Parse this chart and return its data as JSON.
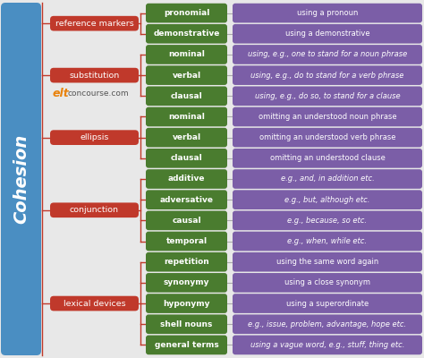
{
  "title": "Cohesion",
  "title_bg": "#4a8ec2",
  "title_text_color": "white",
  "watermark_elt": "elt",
  "watermark_rest": "concourse.com",
  "watermark_elt_color": "#e8820c",
  "watermark_rest_color": "#555555",
  "categories": [
    {
      "label": "reference markers",
      "rows": [
        0,
        1
      ]
    },
    {
      "label": "substitution",
      "rows": [
        2,
        3,
        4
      ]
    },
    {
      "label": "ellipsis",
      "rows": [
        5,
        6,
        7
      ]
    },
    {
      "label": "conjunction",
      "rows": [
        8,
        9,
        10,
        11
      ]
    },
    {
      "label": "lexical devices",
      "rows": [
        12,
        13,
        14,
        15,
        16
      ]
    }
  ],
  "rows": [
    {
      "green": "pronomial",
      "purple": "using a pronoun"
    },
    {
      "green": "demonstrative",
      "purple": "using a demonstrative"
    },
    {
      "green": "nominal",
      "purple": "using, e.g., one to stand for a noun phrase"
    },
    {
      "green": "verbal",
      "purple": "using, e.g., do to stand for a verb phrase"
    },
    {
      "green": "clausal",
      "purple": "using, e.g., do so, to stand for a clause"
    },
    {
      "green": "nominal",
      "purple": "omitting an understood noun phrase"
    },
    {
      "green": "verbal",
      "purple": "omitting an understood verb phrase"
    },
    {
      "green": "clausal",
      "purple": "omitting an understood clause"
    },
    {
      "green": "additive",
      "purple": "e.g., and, in addition etc."
    },
    {
      "green": "adversative",
      "purple": "e.g., but, although etc."
    },
    {
      "green": "causal",
      "purple": "e.g., because, so etc."
    },
    {
      "green": "temporal",
      "purple": "e.g., when, while etc."
    },
    {
      "green": "repetition",
      "purple": "using the same word again"
    },
    {
      "green": "synonymy",
      "purple": "using a close synonym"
    },
    {
      "green": "hyponymy",
      "purple": "using a superordinate"
    },
    {
      "green": "shell nouns",
      "purple": "e.g., issue, problem, advantage, hope etc."
    },
    {
      "green": "general terms",
      "purple": "using a vague word, e.g., stuff, thing etc."
    }
  ],
  "red_color": "#c0392b",
  "green_color": "#4a7c2f",
  "purple_color": "#7b5ea7",
  "line_color": "#c0392b",
  "text_white": "white",
  "bg_color": "#e8e8e8",
  "italic_purple": [
    2,
    3,
    4,
    8,
    9,
    10,
    11,
    15,
    16
  ],
  "mixed_italic_purple": {
    "2": [
      "one"
    ],
    "3": [
      "do"
    ],
    "4": [
      "do so,"
    ],
    "8": [
      "and,",
      "in addition"
    ],
    "9": [
      "but,",
      "although"
    ],
    "10": [
      "because,",
      "so"
    ],
    "11": [
      "when,",
      "while"
    ],
    "15": [
      "issue,",
      "problem,",
      "advantage,",
      "hope"
    ],
    "16": [
      "stuff,",
      "thing"
    ]
  }
}
